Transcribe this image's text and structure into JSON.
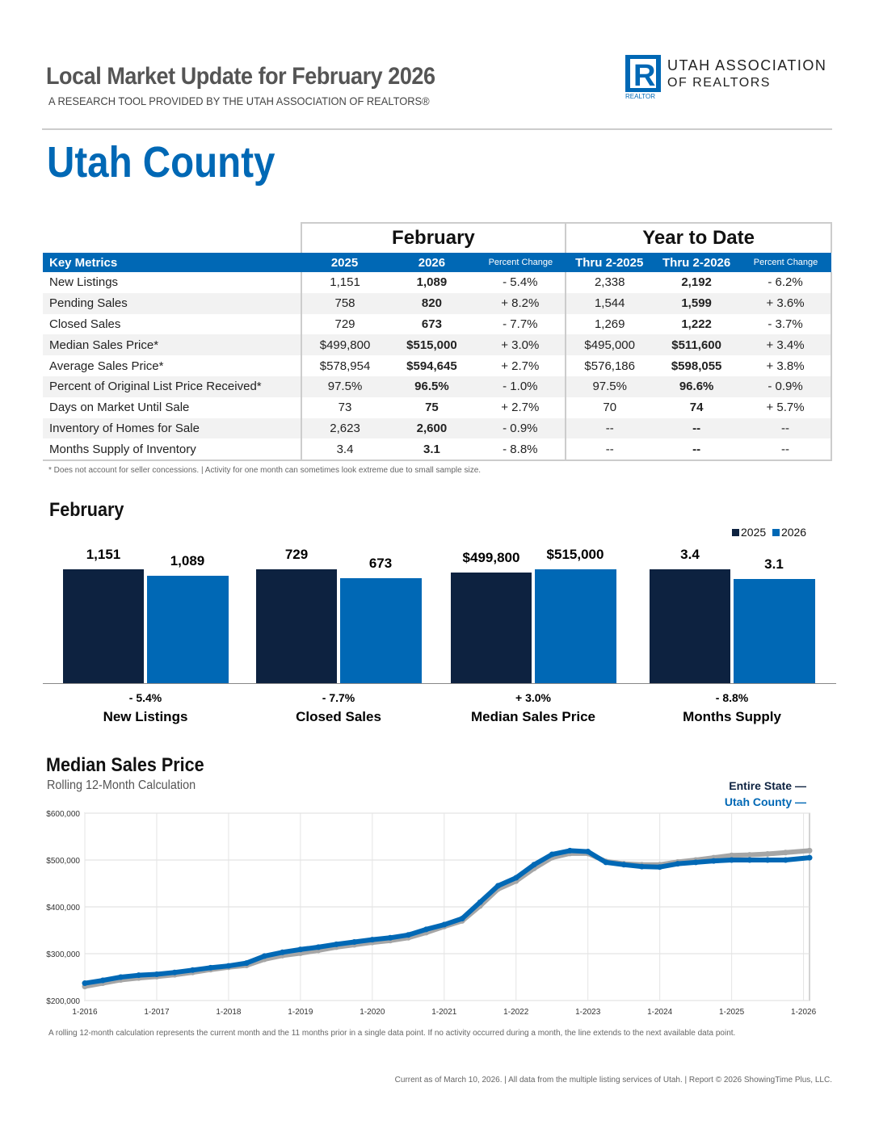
{
  "header": {
    "title": "Local Market Update for February 2026",
    "subtitle": "A RESEARCH TOOL PROVIDED BY THE UTAH ASSOCIATION OF REALTORS®",
    "logo_text_1": "UTAH ASSOCIATION",
    "logo_text_2": "OF REALTORS",
    "logo_mark": "REALTOR"
  },
  "county": "Utah County",
  "table": {
    "group_month": "February",
    "group_ytd": "Year to Date",
    "columns": [
      "Key Metrics",
      "2025",
      "2026",
      "Percent Change",
      "Thru 2-2025",
      "Thru 2-2026",
      "Percent Change"
    ],
    "rows": [
      [
        "New Listings",
        "1,151",
        "1,089",
        "- 5.4%",
        "2,338",
        "2,192",
        "- 6.2%"
      ],
      [
        "Pending Sales",
        "758",
        "820",
        "+ 8.2%",
        "1,544",
        "1,599",
        "+ 3.6%"
      ],
      [
        "Closed Sales",
        "729",
        "673",
        "- 7.7%",
        "1,269",
        "1,222",
        "- 3.7%"
      ],
      [
        "Median Sales Price*",
        "$499,800",
        "$515,000",
        "+ 3.0%",
        "$495,000",
        "$511,600",
        "+ 3.4%"
      ],
      [
        "Average Sales Price*",
        "$578,954",
        "$594,645",
        "+ 2.7%",
        "$576,186",
        "$598,055",
        "+ 3.8%"
      ],
      [
        "Percent of Original List Price Received*",
        "97.5%",
        "96.5%",
        "- 1.0%",
        "97.5%",
        "96.6%",
        "- 0.9%"
      ],
      [
        "Days on Market Until Sale",
        "73",
        "75",
        "+ 2.7%",
        "70",
        "74",
        "+ 5.7%"
      ],
      [
        "Inventory of Homes for Sale",
        "2,623",
        "2,600",
        "- 0.9%",
        "--",
        "--",
        "--"
      ],
      [
        "Months Supply of Inventory",
        "3.4",
        "3.1",
        "- 8.8%",
        "--",
        "--",
        "--"
      ]
    ],
    "footnote": "* Does not account for seller concessions.  |  Activity for one month can sometimes look extreme due to small sample size."
  },
  "chart_data": [
    {
      "type": "bar",
      "title": "February",
      "legend": [
        "2025",
        "2026"
      ],
      "legend_placement": "top-right",
      "colors": {
        "2025": "#0d2240",
        "2026": "#0068b5"
      },
      "categories": [
        "New Listings",
        "Closed Sales",
        "Median Sales Price",
        "Months Supply"
      ],
      "labels_2025": [
        "1,151",
        "729",
        "$499,800",
        "3.4"
      ],
      "labels_2026": [
        "1,089",
        "673",
        "$515,000",
        "3.1"
      ],
      "values_2025": [
        1151,
        729,
        499800,
        3.4
      ],
      "values_2026": [
        1089,
        673,
        515000,
        3.1
      ],
      "pct_change": [
        "- 5.4%",
        "- 7.7%",
        "+ 3.0%",
        "- 8.8%"
      ]
    },
    {
      "type": "line",
      "title": "Median Sales Price",
      "subtitle": "Rolling 12-Month Calculation",
      "ylim": [
        200000,
        600000
      ],
      "yticks": [
        "$600,000",
        "$500,000",
        "$400,000",
        "$300,000",
        "$200,000"
      ],
      "ytick_values": [
        600000,
        500000,
        400000,
        300000,
        200000
      ],
      "xticks": [
        "1-2016",
        "1-2017",
        "1-2018",
        "1-2019",
        "1-2020",
        "1-2021",
        "1-2022",
        "1-2023",
        "1-2024",
        "1-2025",
        "1-2026"
      ],
      "grid": true,
      "x": [
        "2016-01",
        "2016-04",
        "2016-07",
        "2016-10",
        "2017-01",
        "2017-04",
        "2017-07",
        "2017-10",
        "2018-01",
        "2018-04",
        "2018-07",
        "2018-10",
        "2019-01",
        "2019-04",
        "2019-07",
        "2019-10",
        "2020-01",
        "2020-04",
        "2020-07",
        "2020-10",
        "2021-01",
        "2021-04",
        "2021-07",
        "2021-10",
        "2022-01",
        "2022-04",
        "2022-07",
        "2022-10",
        "2023-01",
        "2023-04",
        "2023-07",
        "2023-10",
        "2024-01",
        "2024-04",
        "2024-07",
        "2024-10",
        "2025-01",
        "2025-04",
        "2025-07",
        "2025-10",
        "2026-02"
      ],
      "series": [
        {
          "name": "Entire State",
          "color": "#a6a6a6",
          "values": [
            230000,
            237000,
            244000,
            248000,
            251000,
            255000,
            260000,
            266000,
            271000,
            275000,
            288000,
            296000,
            301000,
            307000,
            314000,
            319000,
            324000,
            328000,
            334000,
            345000,
            358000,
            370000,
            402000,
            438000,
            455000,
            482000,
            505000,
            514000,
            514000,
            497000,
            492000,
            490000,
            490000,
            496000,
            500000,
            505000,
            510000,
            511000,
            513000,
            516000,
            520000
          ]
        },
        {
          "name": "Utah County",
          "color": "#0068b5",
          "values": [
            237000,
            243000,
            250000,
            254000,
            256000,
            260000,
            265000,
            270000,
            274000,
            280000,
            295000,
            303000,
            309000,
            314000,
            320000,
            325000,
            330000,
            334000,
            340000,
            352000,
            362000,
            375000,
            410000,
            445000,
            462000,
            490000,
            512000,
            520000,
            518000,
            495000,
            490000,
            486000,
            485000,
            492000,
            495000,
            498000,
            500000,
            500000,
            500000,
            500000,
            505000
          ]
        }
      ],
      "legend_placement": "top-right",
      "footnote": "A rolling 12-month calculation represents the current month and the 11 months prior in a single data point. If no activity occurred during a month, the line extends to the next available data point."
    }
  ],
  "footer": "Current as of March 10, 2026.  |  All data from the multiple listing services of Utah.  |  Report © 2026 ShowingTime Plus, LLC."
}
